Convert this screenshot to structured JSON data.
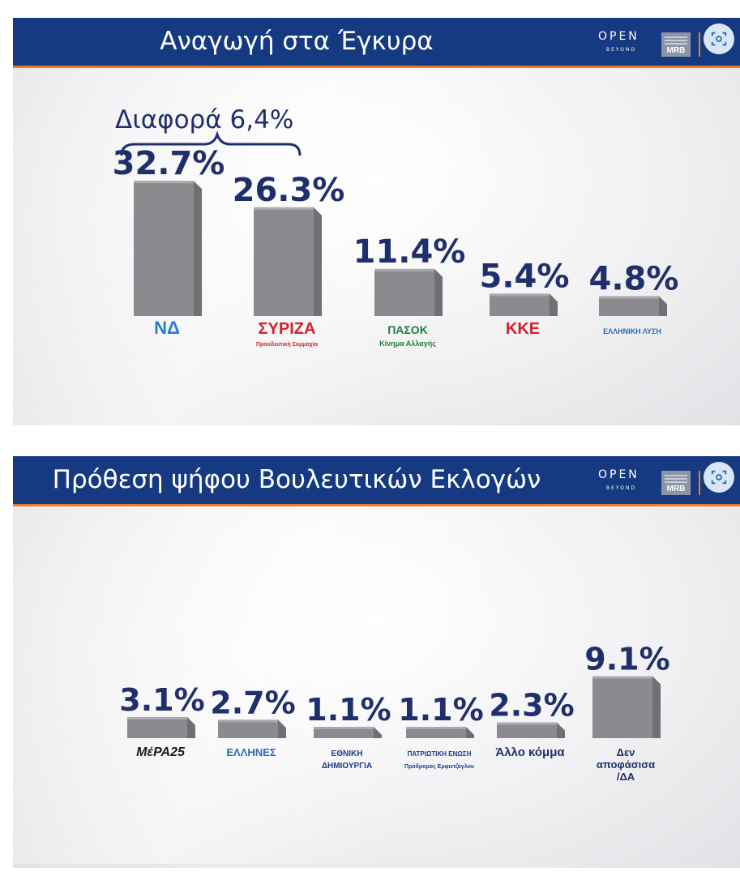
{
  "panel1": {
    "title": "Αναγωγή στα Έγκυρα",
    "brand": {
      "name": "OPEN",
      "sub": "BEYOND",
      "pollster": "MRB"
    },
    "annotation": "Διαφορά 6,4%"
  },
  "panel2": {
    "title": "Πρόθεση ψήφου Βουλευτικών Εκλογών",
    "brand": {
      "name": "OPEN",
      "sub": "BEYOND",
      "pollster": "MRB"
    }
  },
  "colors": {
    "header": "#163a82",
    "accent": "#f07a1e",
    "value_text": "#1f2f6c",
    "bar": "#8b8b8f"
  },
  "icons": [
    "camera-icon"
  ],
  "chart_data": [
    {
      "type": "bar",
      "title": "Αναγωγή στα Έγκυρα",
      "categories": [
        "ΝΔ",
        "ΣΥΡΙΖΑ",
        "ΠΑΣΟΚ",
        "ΚΚΕ",
        "ΕΛΛΗΝΙΚΗ ΛΥΣΗ"
      ],
      "values": [
        32.7,
        26.3,
        11.4,
        5.4,
        4.8
      ],
      "labels": [
        "32.7%",
        "26.3%",
        "11.4%",
        "5.4%",
        "4.8%"
      ],
      "logo_texts": [
        "ΝΔ",
        "ΣΥΡΙΖΑ",
        "ΠΑΣΟΚ",
        "ΚΚΕ",
        "ΕΛΛΗΝΙΚΗ ΛΥΣΗ"
      ],
      "logo_subtexts": [
        "",
        "Προοδευτική Συμμαχία",
        "Κίνημα Αλλαγής",
        "",
        ""
      ],
      "logo_colors": [
        "#2a7bd4",
        "#d5202e",
        "#1b7f3a",
        "#d5202e",
        "#2a6ab8"
      ],
      "grid": false,
      "legend": "none"
    },
    {
      "type": "bar",
      "title": "Πρόθεση ψήφου Βουλευτικών Εκλογών",
      "categories": [
        "ΜέΡΑ25",
        "ΕΛΛΗΝΕΣ",
        "ΕΘΝΙΚΗ ΔΗΜΙΟΥΡΓΙΑ",
        "ΠΑΤΡΙΩΤΙΚΗ ΕΝΩΣΗ",
        "Άλλο κόμμα",
        "Δεν αποφάσισα/ΔΑ"
      ],
      "values": [
        3.1,
        2.7,
        1.1,
        1.1,
        2.3,
        9.1
      ],
      "labels": [
        "3.1%",
        "2.7%",
        "1.1%",
        "1.1%",
        "2.3%",
        "9.1%"
      ],
      "logo_texts": [
        "ΜέΡΑ25",
        "ΕΛΛΗΝΕΣ",
        "ΕΘΝΙΚΗ ΔΗΜΙΟΥΡΓΙΑ",
        "ΠΑΤΡΙΩΤΙΚΗ ΕΝΩΣΗ",
        "Άλλο κόμμα",
        "Δεν αποφάσισα /ΔΑ"
      ],
      "logo_subtexts": [
        "",
        "",
        "",
        "Πρόδρομος Εμφιετζόγλου",
        "",
        ""
      ],
      "logo_colors": [
        "#1a1a1a",
        "#2a6ab8",
        "#1f3a8a",
        "#1f3a8a",
        "#1f2f6c",
        "#1f2f6c"
      ],
      "grid": false,
      "legend": "none"
    }
  ]
}
